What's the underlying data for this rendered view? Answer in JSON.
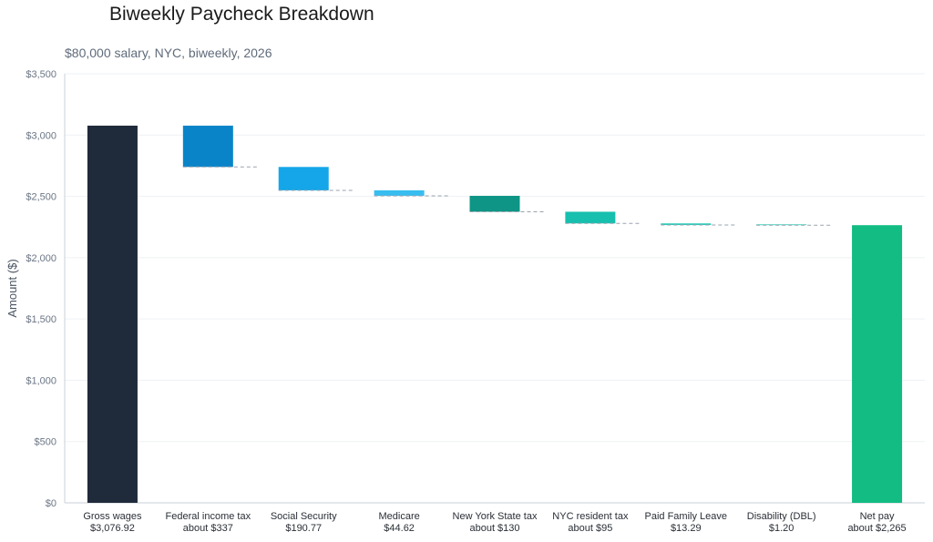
{
  "chart_data": {
    "type": "bar",
    "subtype": "waterfall",
    "title": "Biweekly Paycheck Breakdown",
    "subtitle": "$80,000 salary, NYC, biweekly, 2026",
    "xlabel": "",
    "ylabel": "Amount ($)",
    "ylim": [
      0,
      3500
    ],
    "yticks": [
      0,
      500,
      1000,
      1500,
      2000,
      2500,
      3000,
      3500
    ],
    "ytick_labels": [
      "$0",
      "$500",
      "$1,000",
      "$1,500",
      "$2,000",
      "$2,500",
      "$3,000",
      "$3,500"
    ],
    "grid": true,
    "categories": [
      {
        "label": "Gross wages",
        "sublabel": "$3,076.92",
        "kind": "total",
        "value": 3076.92,
        "color": "#1f2a3a"
      },
      {
        "label": "Federal income tax",
        "sublabel": "about $337",
        "kind": "decrease",
        "value": 337,
        "color": "#0a84c8"
      },
      {
        "label": "Social Security",
        "sublabel": "$190.77",
        "kind": "decrease",
        "value": 190.77,
        "color": "#14a6e8"
      },
      {
        "label": "Medicare",
        "sublabel": "$44.62",
        "kind": "decrease",
        "value": 44.62,
        "color": "#38bdf0"
      },
      {
        "label": "New York State tax",
        "sublabel": "about $130",
        "kind": "decrease",
        "value": 130,
        "color": "#0f9585"
      },
      {
        "label": "NYC resident tax",
        "sublabel": "about $95",
        "kind": "decrease",
        "value": 95,
        "color": "#17bfae"
      },
      {
        "label": "Paid Family Leave",
        "sublabel": "$13.29",
        "kind": "decrease",
        "value": 13.29,
        "color": "#27cbb7"
      },
      {
        "label": "Disability (DBL)",
        "sublabel": "$1.20",
        "kind": "decrease",
        "value": 1.2,
        "color": "#4fd6c2"
      },
      {
        "label": "Net pay",
        "sublabel": "about $2,265",
        "kind": "total",
        "value": 2265,
        "color": "#12bc82"
      }
    ],
    "colors": {
      "grid": "#eef1f4",
      "axis": "#c9d0d8",
      "connector": "#9aa3ad"
    }
  }
}
